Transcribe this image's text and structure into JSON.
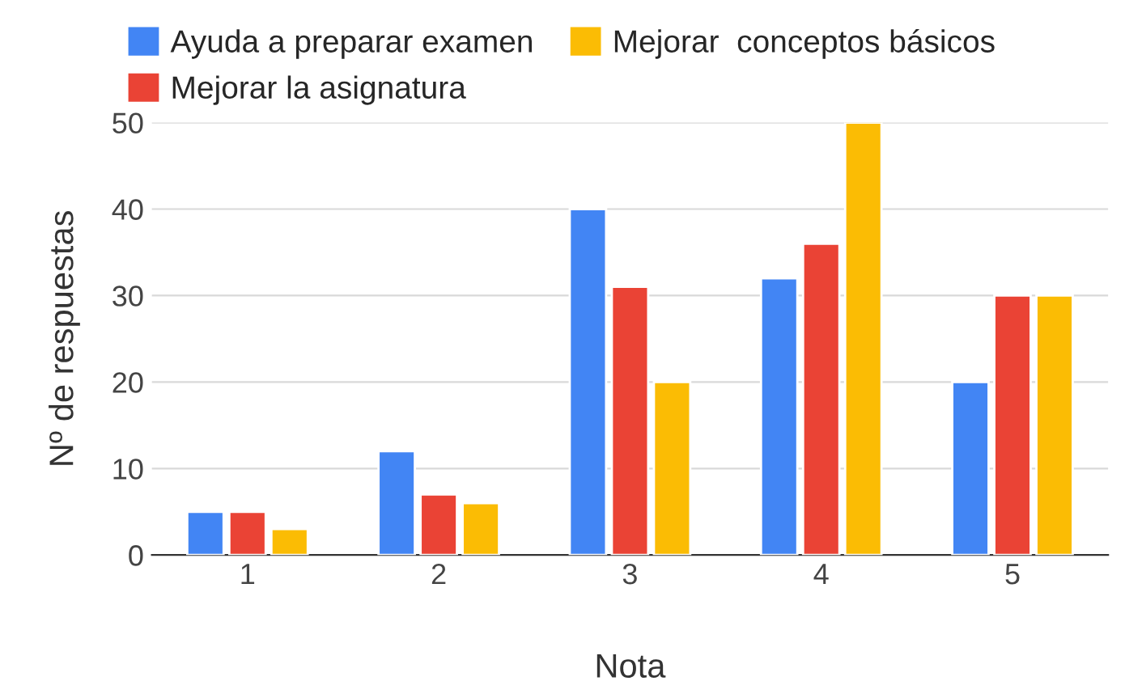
{
  "chart_data": {
    "type": "bar",
    "xlabel": "Nota",
    "ylabel": "Nº de respuestas",
    "categories": [
      "1",
      "2",
      "3",
      "4",
      "5"
    ],
    "series": [
      {
        "name": "Ayuda a preparar examen",
        "color": "#4285f4",
        "values": [
          5,
          12,
          40,
          32,
          20
        ]
      },
      {
        "name": "Mejorar la asignatura",
        "color": "#ea4335",
        "values": [
          5,
          7,
          31,
          36,
          30
        ]
      },
      {
        "name": "Mejorar  conceptos básicos",
        "color": "#fbbc04",
        "values": [
          3,
          6,
          20,
          50,
          30
        ]
      }
    ],
    "ylim": [
      0,
      50
    ],
    "yticks": [
      0,
      10,
      20,
      30,
      40,
      50
    ],
    "grid": "y",
    "legend": "top"
  }
}
